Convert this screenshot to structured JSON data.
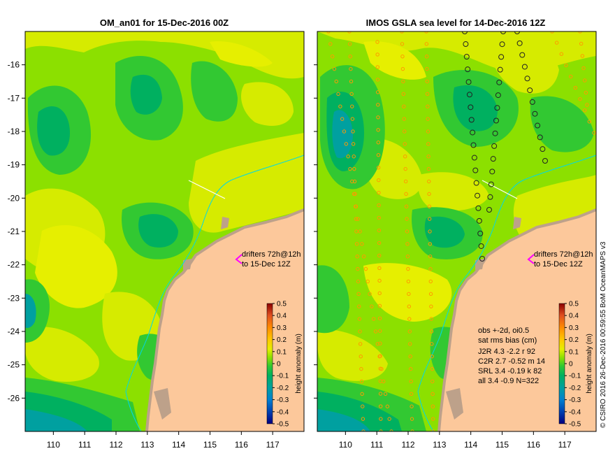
{
  "panels": [
    {
      "title": "OM_an01 for 15-Dec-2016 00Z",
      "drifter_label": [
        "drifters 72h@12h",
        "to 15-Dec 12Z"
      ]
    },
    {
      "title": "IMOS GSLA sea level  for 14-Dec-2016 12Z",
      "drifter_label": [
        "drifters 72h@12h",
        "to 15-Dec 12Z"
      ],
      "stats": {
        "line1": "obs +-2d, oi0.5",
        "line2": "sat rms bias (cm)",
        "rows": [
          "J2R   4.3 -2.2 r 92",
          "C2R   2.7 -0.52 m 14",
          "SRL   3.4 -0.19 k 82",
          "all   3.4 -0.9 N=322"
        ]
      }
    }
  ],
  "axes": {
    "x_ticks": [
      "110",
      "111",
      "112",
      "113",
      "114",
      "115",
      "116",
      "117"
    ],
    "y_ticks": [
      "-16",
      "-17",
      "-18",
      "-19",
      "-20",
      "-21",
      "-22",
      "-23",
      "-24",
      "-25",
      "-26"
    ],
    "x_range": [
      109.1,
      118.0
    ],
    "y_range": [
      -27.0,
      -15.0
    ]
  },
  "colorbar": {
    "label": "height anomaly (m)",
    "ticks": [
      "0.5",
      "0.4",
      "0.3",
      "0.2",
      "0.1",
      "0",
      "-0.1",
      "-0.2",
      "-0.3",
      "-0.4",
      "-0.5"
    ],
    "colors": [
      "#8b0000",
      "#b22222",
      "#e05020",
      "#ff8c00",
      "#ffc800",
      "#e6ef00",
      "#8ce000",
      "#32c832",
      "#00b060",
      "#00a0a0",
      "#0080d0",
      "#0040b0",
      "#000080"
    ]
  },
  "credit": "© CSIRO 2016   26-Dec-2016 00:59:55 BoM OceanMAPS v3",
  "land_color": "#fcc89b",
  "coast_color": "#bda18a"
}
